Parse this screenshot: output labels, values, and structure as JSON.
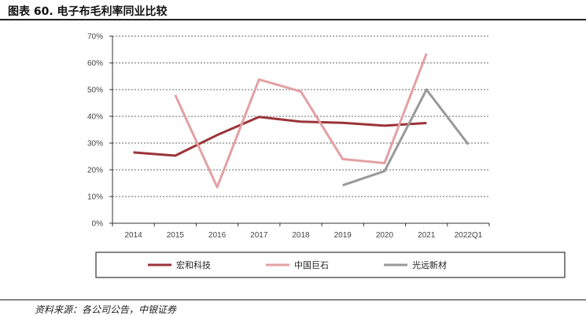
{
  "title": "图表 60. 电子布毛利率同业比较",
  "source": "资料来源：各公司公告，中银证券",
  "chart_data": {
    "type": "line",
    "categories": [
      "2014",
      "2015",
      "2016",
      "2017",
      "2018",
      "2019",
      "2020",
      "2021",
      "2022Q1"
    ],
    "ylim": [
      0,
      70
    ],
    "yticks": [
      0,
      10,
      20,
      30,
      40,
      50,
      60,
      70
    ],
    "ytick_labels": [
      "0%",
      "10%",
      "20%",
      "30%",
      "40%",
      "50%",
      "60%",
      "70%"
    ],
    "grid": "horizontal-dashed",
    "legend_position": "bottom",
    "series": [
      {
        "name": "宏和科技",
        "color": "#9b3438",
        "values": [
          26.5,
          25.3,
          33,
          39.8,
          38,
          37.6,
          36.5,
          37.5,
          null
        ]
      },
      {
        "name": "中国巨石",
        "color": "#e3a0a4",
        "values": [
          null,
          48,
          13.5,
          53.8,
          49.3,
          24,
          22.5,
          63.5,
          null
        ]
      },
      {
        "name": "光远新材",
        "color": "#999999",
        "values": [
          null,
          null,
          null,
          null,
          null,
          14.2,
          19.5,
          50,
          29.5
        ]
      }
    ]
  }
}
